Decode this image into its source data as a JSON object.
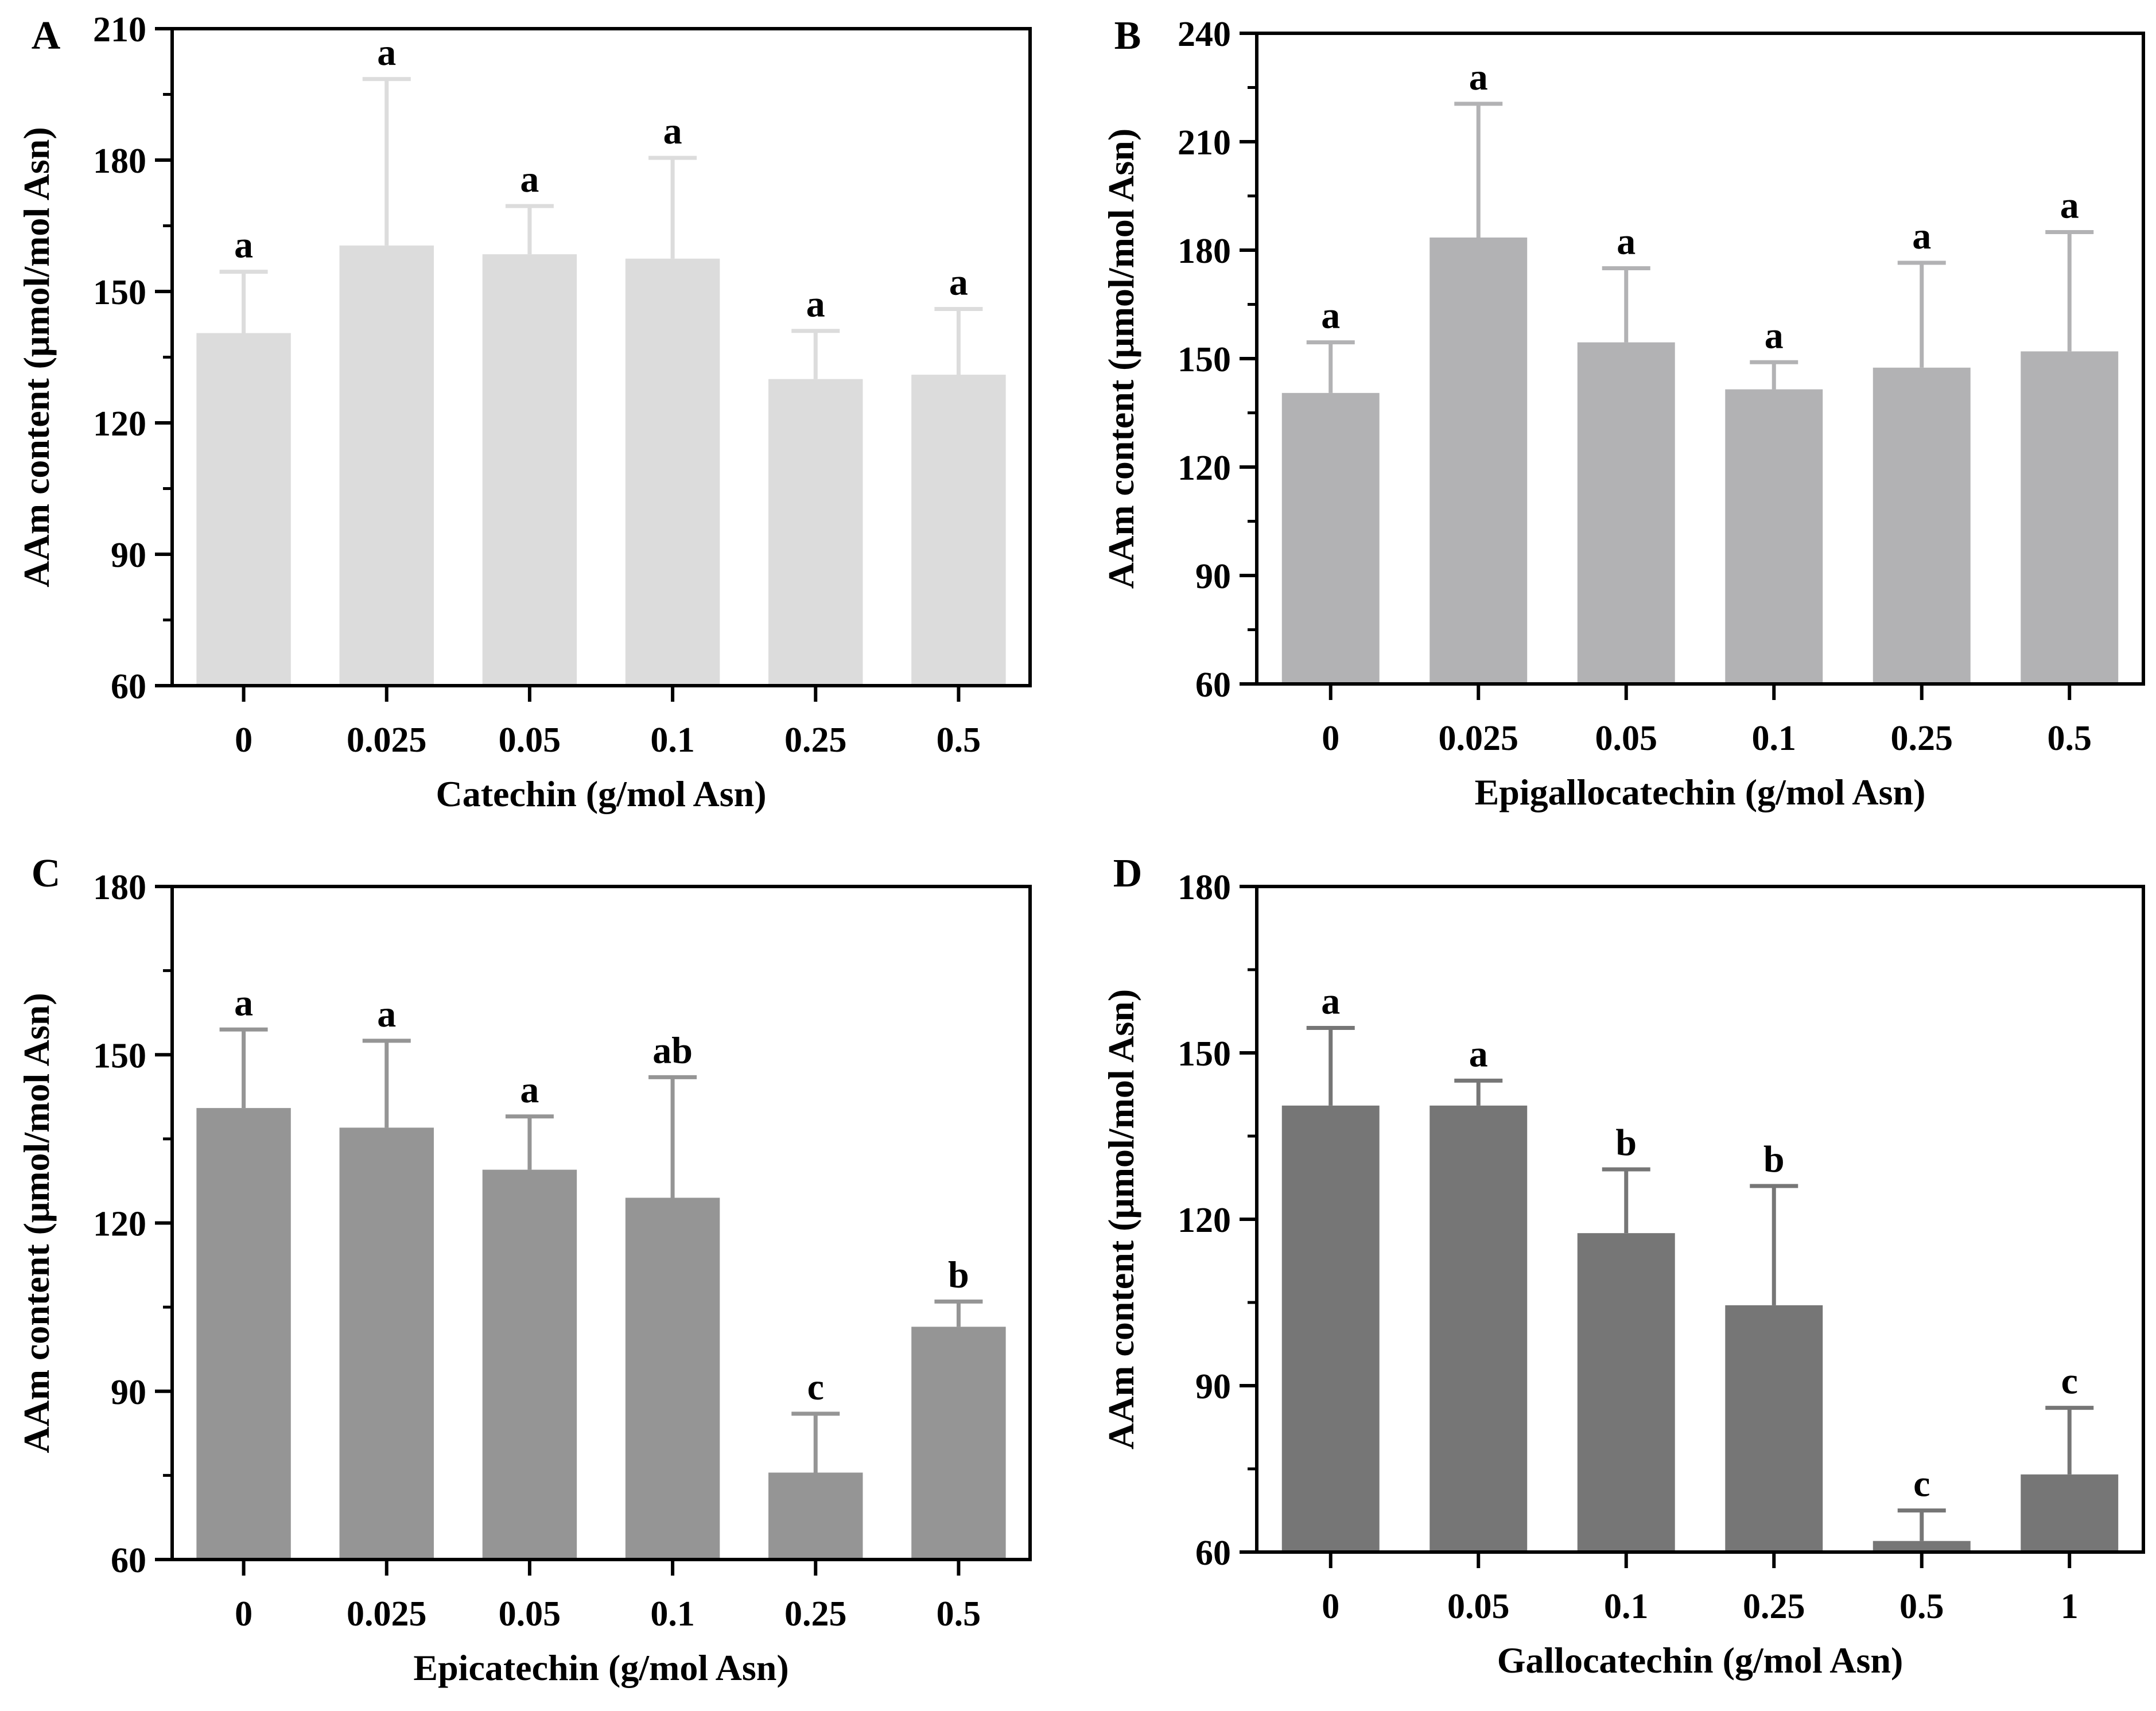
{
  "chart_data": [
    {
      "panel": "A",
      "type": "bar",
      "xlabel": "Catechin (g/mol Asn)",
      "ylabel": "AAm content (μmol/mol Asn)",
      "categories": [
        "0",
        "0.025",
        "0.05",
        "0.1",
        "0.25",
        "0.5"
      ],
      "values": [
        140.5,
        160.5,
        158.5,
        157.5,
        130,
        131
      ],
      "errors": [
        14,
        38,
        11,
        23,
        11,
        15
      ],
      "letters": [
        "a",
        "a",
        "a",
        "a",
        "a",
        "a"
      ],
      "ylim": [
        60,
        210
      ],
      "yticks": [
        60,
        90,
        120,
        150,
        180,
        210
      ],
      "color": "#dcdcdc",
      "grid": false
    },
    {
      "panel": "B",
      "type": "bar",
      "xlabel": "Epigallocatechin (g/mol Asn)",
      "ylabel": "AAm content (μmol/mol Asn)",
      "categories": [
        "0",
        "0.025",
        "0.05",
        "0.1",
        "0.25",
        "0.5"
      ],
      "values": [
        140.5,
        183.5,
        154.5,
        141.5,
        147.5,
        152
      ],
      "errors": [
        14,
        37,
        20.5,
        7.5,
        29,
        33
      ],
      "letters": [
        "a",
        "a",
        "a",
        "a",
        "a",
        "a"
      ],
      "ylim": [
        60,
        240
      ],
      "yticks": [
        60,
        90,
        120,
        150,
        180,
        210,
        240
      ],
      "color": "#b2b2b4",
      "grid": false
    },
    {
      "panel": "C",
      "type": "bar",
      "xlabel": "Epicatechin (g/mol Asn)",
      "ylabel": "AAm content (μmol/mol Asn)",
      "categories": [
        "0",
        "0.025",
        "0.05",
        "0.1",
        "0.25",
        "0.5"
      ],
      "values": [
        140.5,
        137,
        129.5,
        124.5,
        75.5,
        101.5
      ],
      "errors": [
        14,
        15.5,
        9.5,
        21.5,
        10.5,
        4.5
      ],
      "letters": [
        "a",
        "a",
        "a",
        "ab",
        "c",
        "b"
      ],
      "ylim": [
        60,
        180
      ],
      "yticks": [
        60,
        90,
        120,
        150,
        180
      ],
      "color": "#959595",
      "grid": false
    },
    {
      "panel": "D",
      "type": "bar",
      "xlabel": "Gallocatechin (g/mol Asn)",
      "ylabel": "AAm content (μmol/mol Asn)",
      "categories": [
        "0",
        "0.05",
        "0.1",
        "0.25",
        "0.5",
        "1"
      ],
      "values": [
        140.5,
        140.5,
        117.5,
        104.5,
        62,
        74
      ],
      "errors": [
        14,
        4.5,
        11.5,
        21.5,
        5.5,
        12
      ],
      "letters": [
        "a",
        "a",
        "b",
        "b",
        "c",
        "c"
      ],
      "ylim": [
        60,
        180
      ],
      "yticks": [
        60,
        90,
        120,
        150,
        180
      ],
      "color": "#767676",
      "grid": false
    }
  ]
}
